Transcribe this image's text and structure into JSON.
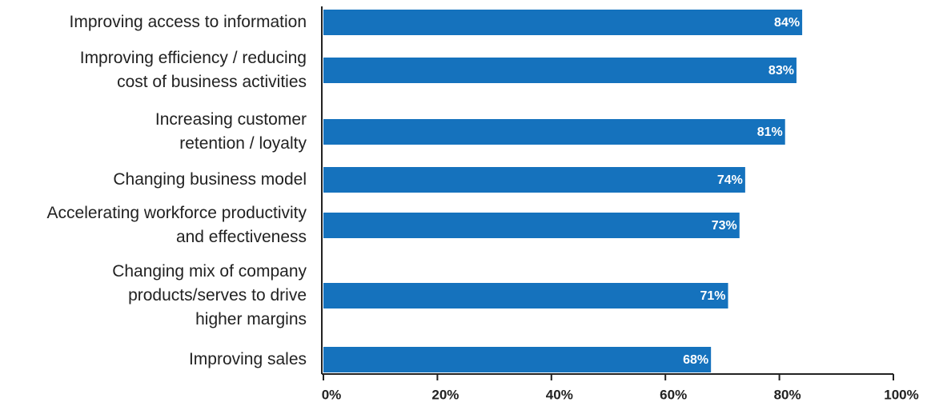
{
  "chart_data": {
    "type": "barh",
    "categories": [
      [
        "Improving access to information"
      ],
      [
        "Improving efficiency / reducing",
        "cost of business activities"
      ],
      [
        "Increasing customer",
        "retention / loyalty"
      ],
      [
        "Changing business model"
      ],
      [
        "Accelerating workforce productivity",
        "and effectiveness"
      ],
      [
        "Changing mix of company",
        "products/serves to drive",
        "higher margins"
      ],
      [
        "Improving sales"
      ]
    ],
    "values": [
      84,
      83,
      81,
      74,
      73,
      71,
      68
    ],
    "value_labels": [
      "84%",
      "83%",
      "81%",
      "74%",
      "73%",
      "71%",
      "68%"
    ],
    "color": "#1572bd",
    "xlim": [
      0,
      100
    ],
    "xticks": [
      {
        "value": 0,
        "label": "0%"
      },
      {
        "value": 20,
        "label": "20%"
      },
      {
        "value": 40,
        "label": "40%"
      },
      {
        "value": 60,
        "label": "60%"
      },
      {
        "value": 80,
        "label": "80%"
      },
      {
        "value": 100,
        "label": "100%"
      }
    ]
  }
}
